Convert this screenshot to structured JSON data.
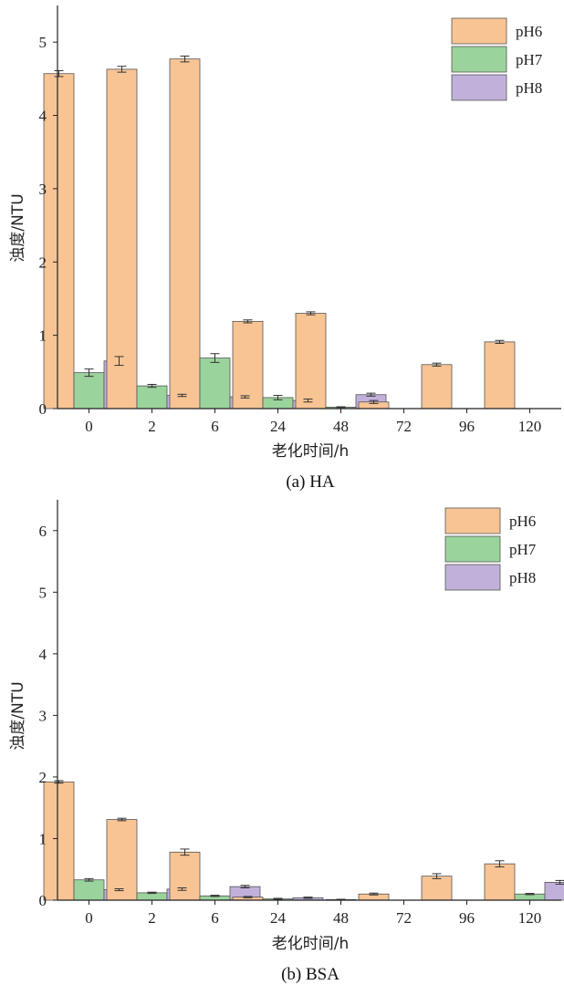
{
  "colors": {
    "pH6": "#f8c494",
    "pH7": "#9bd39c",
    "pH8": "#c1b1da",
    "axis": "#222222"
  },
  "chart_data": [
    {
      "type": "bar",
      "caption": "(a) HA",
      "xlabel": "老化时间/h",
      "ylabel": "浊度/NTU",
      "ylim": [
        0,
        5.5
      ],
      "yticks": [
        "0",
        "1",
        "2",
        "3",
        "4",
        "5"
      ],
      "categories": [
        "0",
        "2",
        "6",
        "24",
        "48",
        "72",
        "96",
        "120"
      ],
      "legend_position": "top-right",
      "series": [
        {
          "name": "pH6",
          "values": [
            4.57,
            4.63,
            4.77,
            1.19,
            1.3,
            0.09,
            0.6,
            0.91
          ],
          "errors": [
            0.04,
            0.04,
            0.04,
            0.02,
            0.02,
            0.02,
            0.02,
            0.02
          ]
        },
        {
          "name": "pH7",
          "values": [
            0.49,
            0.31,
            0.69,
            0.15,
            0.02,
            0,
            0,
            0
          ],
          "errors": [
            0.05,
            0.02,
            0.06,
            0.03,
            0.005,
            0,
            0,
            0
          ]
        },
        {
          "name": "pH8",
          "values": [
            0.65,
            0.18,
            0.16,
            0.11,
            0.19,
            0,
            0,
            0
          ],
          "errors": [
            0.06,
            0.015,
            0.015,
            0.02,
            0.02,
            0,
            0,
            0
          ]
        }
      ]
    },
    {
      "type": "bar",
      "caption": "(b) BSA",
      "xlabel": "老化时间/h",
      "ylabel": "浊度/NTU",
      "ylim": [
        0,
        6.5
      ],
      "yticks": [
        "0",
        "1",
        "2",
        "3",
        "4",
        "5",
        "6"
      ],
      "categories": [
        "0",
        "2",
        "6",
        "24",
        "48",
        "72",
        "96",
        "120"
      ],
      "legend_position": "top-right",
      "series": [
        {
          "name": "pH6",
          "values": [
            1.92,
            1.31,
            0.78,
            0.05,
            0,
            0.1,
            0.39,
            0.59
          ],
          "errors": [
            0.02,
            0.02,
            0.05,
            0.01,
            0,
            0.015,
            0.04,
            0.05
          ]
        },
        {
          "name": "pH7",
          "values": [
            0.33,
            0.12,
            0.07,
            0.02,
            0.01,
            0,
            0,
            0.1
          ],
          "errors": [
            0.02,
            0.01,
            0.01,
            0.01,
            0.005,
            0,
            0,
            0.01
          ]
        },
        {
          "name": "pH8",
          "values": [
            0.17,
            0.18,
            0.22,
            0.04,
            0,
            0,
            0,
            0.29
          ],
          "errors": [
            0.015,
            0.02,
            0.02,
            0.01,
            0,
            0,
            0,
            0.03
          ]
        }
      ]
    }
  ]
}
